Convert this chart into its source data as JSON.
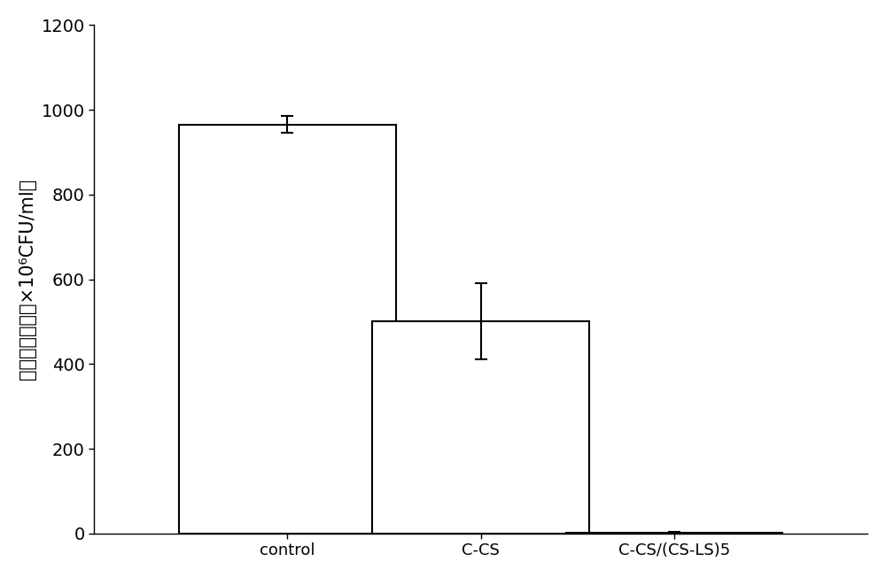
{
  "categories": [
    "control",
    "C-CS",
    "C-CS/(CS-LS)5"
  ],
  "values": [
    965,
    500,
    2
  ],
  "errors": [
    20,
    90,
    1
  ],
  "bar_color": "#ffffff",
  "bar_edgecolor": "#000000",
  "bar_linewidth": 1.5,
  "ylim": [
    0,
    1200
  ],
  "yticks": [
    0,
    200,
    400,
    600,
    800,
    1000,
    1200
  ],
  "ylabel_chinese": "绿脸杆菌浓度（×10⁶CFU/ml）",
  "ylabel_fontsize": 15,
  "tick_fontsize": 14,
  "xtick_fontsize": 13,
  "bar_width": 0.28,
  "x_positions": [
    0.25,
    0.5,
    0.75
  ],
  "figsize": [
    10.0,
    6.52
  ],
  "dpi": 100,
  "background_color": "#ffffff",
  "spine_color": "#000000",
  "capsize": 5,
  "error_linewidth": 1.5
}
